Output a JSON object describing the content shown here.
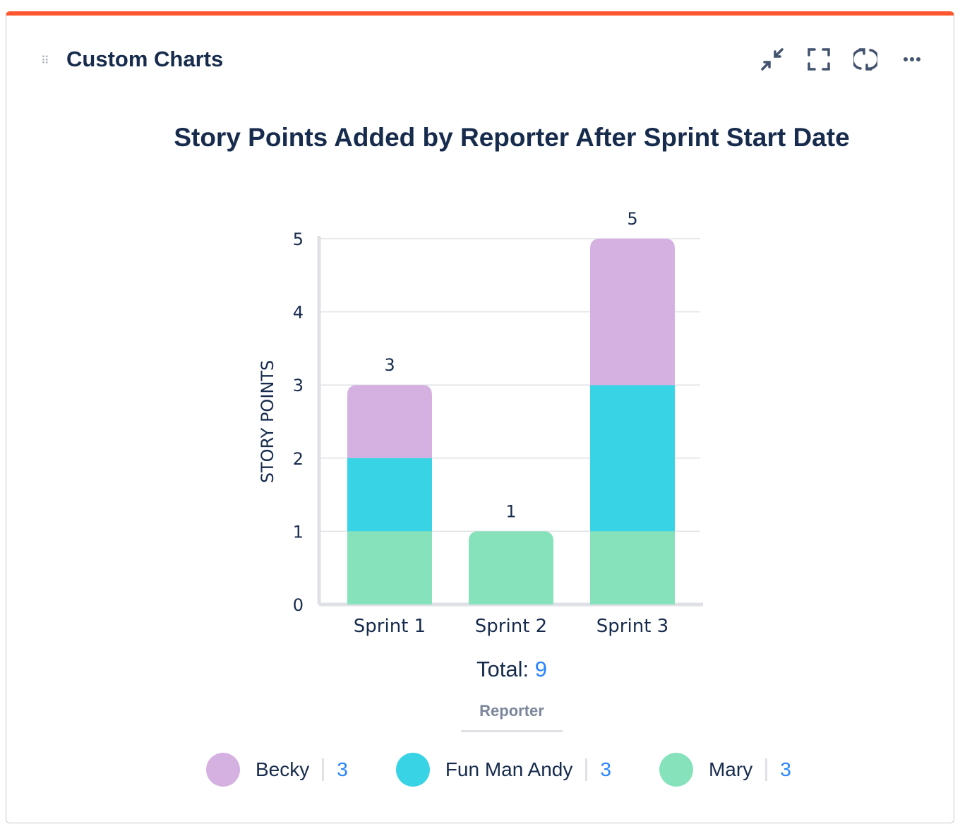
{
  "header": {
    "title": "Custom Charts",
    "icons": [
      "drag-handle-icon",
      "collapse-icon",
      "fullscreen-icon",
      "refresh-icon",
      "more-icon"
    ]
  },
  "accent": "#ff5630",
  "chart_data": {
    "type": "bar",
    "stacked": true,
    "title": "Story Points Added by Reporter After Sprint Start Date",
    "xlabel": "",
    "ylabel": "STORY POINTS",
    "ylim": [
      0,
      5
    ],
    "yticks": [
      "0",
      "1",
      "2",
      "3",
      "4",
      "5"
    ],
    "grid": true,
    "categories": [
      "Sprint 1",
      "Sprint 2",
      "Sprint 3"
    ],
    "series": [
      {
        "name": "Mary",
        "color": "#86e2bb",
        "values": [
          1,
          1,
          1
        ]
      },
      {
        "name": "Fun Man Andy",
        "color": "#38d3e5",
        "values": [
          1,
          0,
          2
        ]
      },
      {
        "name": "Becky",
        "color": "#d5b1e2",
        "values": [
          1,
          0,
          2
        ]
      }
    ],
    "totals": [
      "3",
      "1",
      "5"
    ],
    "legend_position": "bottom"
  },
  "summary": {
    "total_label": "Total:",
    "total_value": "9",
    "group_label": "Reporter"
  },
  "legend": [
    {
      "name": "Becky",
      "value": "3",
      "color": "#d5b1e2"
    },
    {
      "name": "Fun Man Andy",
      "value": "3",
      "color": "#38d3e5"
    },
    {
      "name": "Mary",
      "value": "3",
      "color": "#86e2bb"
    }
  ]
}
